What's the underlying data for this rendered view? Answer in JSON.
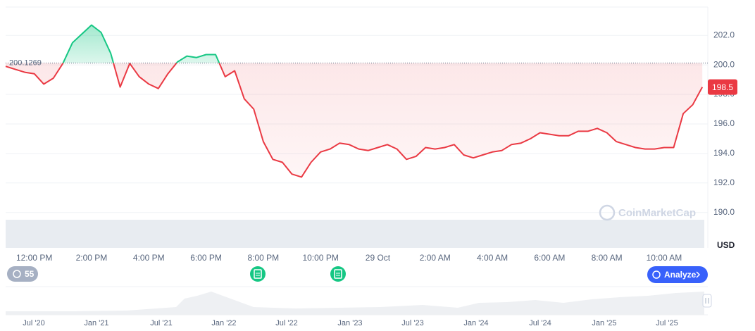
{
  "chart_data": {
    "type": "line",
    "categories": [
      null,
      null,
      null,
      "12:00 PM",
      null,
      null,
      null,
      null,
      null,
      "2:00 PM",
      null,
      null,
      null,
      null,
      null,
      "4:00 PM",
      null,
      null,
      null,
      null,
      null,
      "6:00 PM",
      null,
      null,
      null,
      null,
      null,
      "8:00 PM",
      null,
      null,
      null,
      null,
      null,
      "10:00 PM",
      null,
      null,
      null,
      null,
      null,
      "29 Oct",
      null,
      null,
      null,
      null,
      null,
      "2:00 AM",
      null,
      null,
      null,
      null,
      null,
      "4:00 AM",
      null,
      null,
      null,
      null,
      null,
      "6:00 AM",
      null,
      null,
      null,
      null,
      null,
      "8:00 AM",
      null,
      null,
      null,
      null,
      null,
      "10:00 AM",
      null,
      null,
      null,
      null
    ],
    "values": [
      199.9,
      199.7,
      199.5,
      199.4,
      198.7,
      199.1,
      200.1,
      201.5,
      202.1,
      202.7,
      202.2,
      200.8,
      198.5,
      200.1,
      199.2,
      198.7,
      198.4,
      199.4,
      200.2,
      200.6,
      200.5,
      200.7,
      200.7,
      199.2,
      199.6,
      197.7,
      197.0,
      194.8,
      193.6,
      193.4,
      192.6,
      192.4,
      193.4,
      194.1,
      194.3,
      194.7,
      194.6,
      194.3,
      194.2,
      194.4,
      194.6,
      194.3,
      193.6,
      193.8,
      194.4,
      194.3,
      194.4,
      194.6,
      193.9,
      193.7,
      193.9,
      194.1,
      194.2,
      194.6,
      194.7,
      195.0,
      195.4,
      195.3,
      195.2,
      195.2,
      195.5,
      195.5,
      195.7,
      195.4,
      194.8,
      194.6,
      194.4,
      194.3,
      194.3,
      194.4,
      194.4,
      196.7,
      197.3,
      198.5
    ],
    "baseline": 200.1269,
    "price_tag": "198.5",
    "color_above": "#16c784",
    "color_below": "#ea3943",
    "ylim": [
      187.6,
      203.92
    ],
    "yticks": [
      {
        "value": 190,
        "label": "190.0"
      },
      {
        "value": 192,
        "label": "192.0"
      },
      {
        "value": 194,
        "label": "194.0"
      },
      {
        "value": 196,
        "label": "196.0"
      },
      {
        "value": 198,
        "label": "198.0"
      },
      {
        "value": 200,
        "label": "200.0"
      },
      {
        "value": 202,
        "label": "202.0"
      }
    ],
    "y_unit": "USD",
    "grid": true
  },
  "ui": {
    "watermark": "CoinMarketCap",
    "history_badge": "55",
    "analyze_button": "Analyze",
    "navigator_labels": [
      "Jul '20",
      "Jan '21",
      "Jul '21",
      "Jan '22",
      "Jul '22",
      "Jan '23",
      "Jul '23",
      "Jan '24",
      "Jul '24",
      "Jan '25",
      "Jul '25"
    ]
  }
}
